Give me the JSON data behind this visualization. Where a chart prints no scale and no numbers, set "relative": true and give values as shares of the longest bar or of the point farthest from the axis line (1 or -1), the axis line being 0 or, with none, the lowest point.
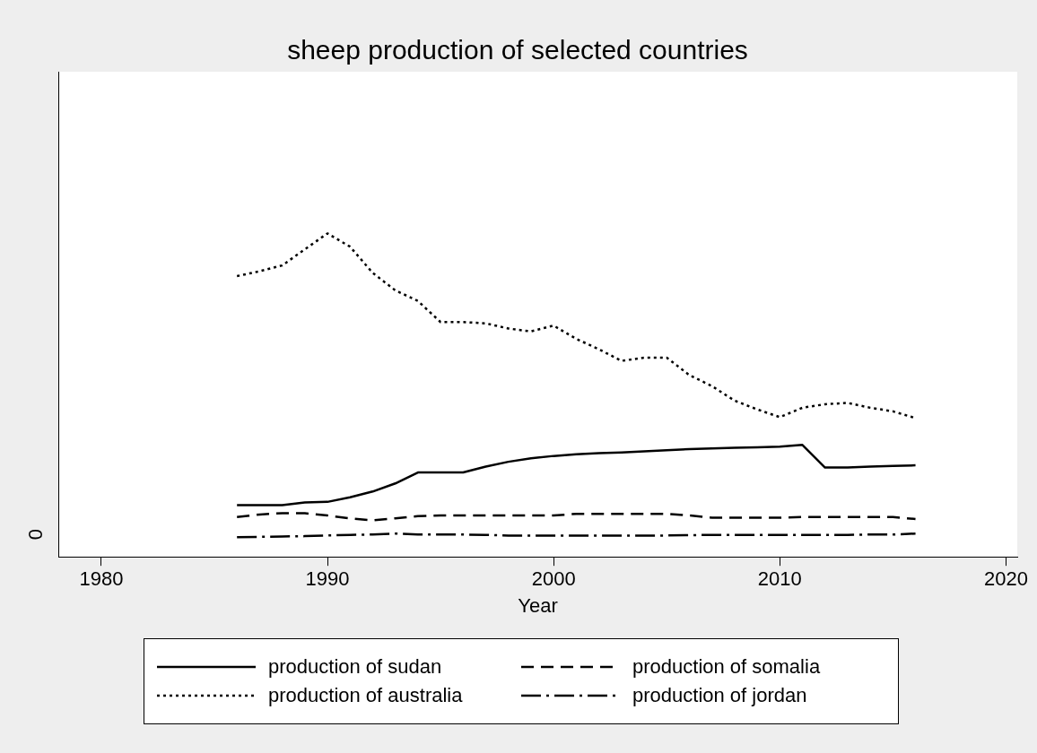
{
  "chart_data": {
    "type": "line",
    "title": "sheep production of selected countries",
    "xlabel": "Year",
    "relative": true,
    "x": [
      1986,
      1987,
      1988,
      1989,
      1990,
      1991,
      1992,
      1993,
      1994,
      1995,
      1996,
      1997,
      1998,
      1999,
      2000,
      2001,
      2002,
      2003,
      2004,
      2005,
      2006,
      2007,
      2008,
      2009,
      2010,
      2011,
      2012,
      2013,
      2014,
      2015,
      2016
    ],
    "series": [
      {
        "name": "production of sudan",
        "color": "#000000",
        "line_style": "solid",
        "values": [
          0.16,
          0.16,
          0.16,
          0.168,
          0.17,
          0.184,
          0.202,
          0.227,
          0.261,
          0.261,
          0.261,
          0.279,
          0.294,
          0.305,
          0.312,
          0.317,
          0.321,
          0.323,
          0.326,
          0.33,
          0.333,
          0.335,
          0.337,
          0.339,
          0.341,
          0.346,
          0.276,
          0.276,
          0.279,
          0.281,
          0.283
        ]
      },
      {
        "name": "production of somalia",
        "color": "#000000",
        "line_style": "dashed",
        "values": [
          0.123,
          0.131,
          0.135,
          0.135,
          0.128,
          0.119,
          0.113,
          0.119,
          0.126,
          0.128,
          0.128,
          0.128,
          0.128,
          0.128,
          0.128,
          0.133,
          0.133,
          0.133,
          0.133,
          0.133,
          0.128,
          0.121,
          0.121,
          0.121,
          0.121,
          0.123,
          0.123,
          0.123,
          0.123,
          0.123,
          0.117
        ]
      },
      {
        "name": "production of australia",
        "color": "#000000",
        "line_style": "dotted",
        "values": [
          0.868,
          0.883,
          0.901,
          0.951,
          1,
          0.959,
          0.878,
          0.824,
          0.791,
          0.726,
          0.726,
          0.722,
          0.706,
          0.697,
          0.715,
          0.674,
          0.642,
          0.606,
          0.616,
          0.616,
          0.562,
          0.528,
          0.483,
          0.456,
          0.432,
          0.461,
          0.472,
          0.476,
          0.461,
          0.45,
          0.429
        ]
      },
      {
        "name": "production of jordan",
        "color": "#000000",
        "line_style": "dashdot",
        "values": [
          0.061,
          0.062,
          0.063,
          0.064,
          0.066,
          0.068,
          0.069,
          0.072,
          0.069,
          0.069,
          0.069,
          0.068,
          0.066,
          0.066,
          0.066,
          0.066,
          0.066,
          0.066,
          0.066,
          0.066,
          0.067,
          0.068,
          0.068,
          0.068,
          0.068,
          0.068,
          0.068,
          0.068,
          0.069,
          0.069,
          0.072
        ]
      }
    ],
    "xlim": [
      1978.1,
      2020.5
    ],
    "xticks": [
      1980,
      1990,
      2000,
      2010,
      2020
    ],
    "annotations": [
      "0"
    ],
    "legend": "bottom",
    "marker": "none"
  }
}
